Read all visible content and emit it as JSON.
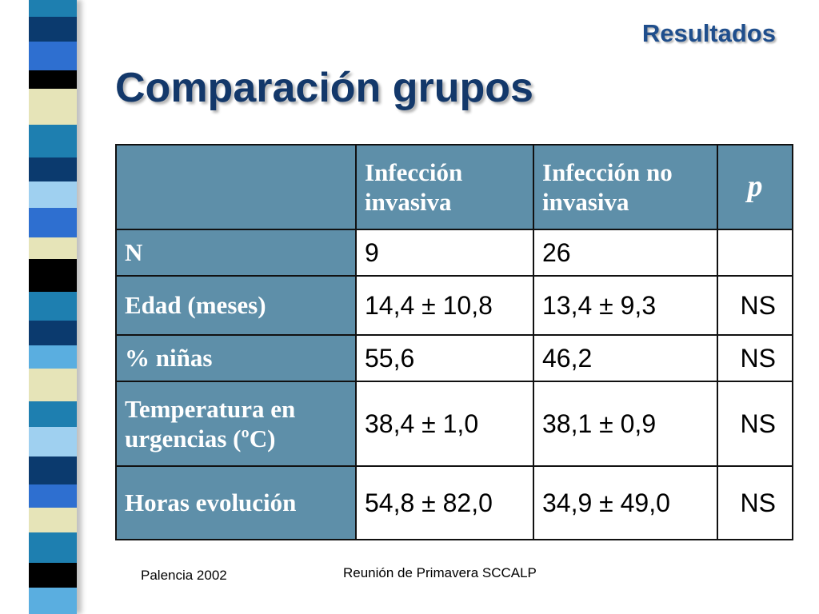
{
  "slide": {
    "section_label": "Resultados",
    "title": "Comparación grupos"
  },
  "table": {
    "headers": [
      "",
      "Infección invasiva",
      "Infección no invasiva",
      "p"
    ],
    "rows": [
      {
        "label": "N",
        "invasiva": "9",
        "no_invasiva": "26",
        "p": ""
      },
      {
        "label": "Edad (meses)",
        "invasiva": "14,4 ± 10,8",
        "no_invasiva": "13,4 ± 9,3",
        "p": "NS"
      },
      {
        "label": "% niñas",
        "invasiva": "55,6",
        "no_invasiva": "46,2",
        "p": "NS"
      },
      {
        "label": "Temperatura en urgencias (ºC)",
        "invasiva": "38,4 ± 1,0",
        "no_invasiva": "38,1 ± 0,9",
        "p": "NS"
      },
      {
        "label": "Horas evolución",
        "invasiva": "54,8 ± 82,0",
        "no_invasiva": "34,9 ± 49,0",
        "p": "NS"
      }
    ]
  },
  "footer": {
    "left": "Palencia 2002",
    "center": "Reunión de Primavera SCCALP"
  },
  "colors": {
    "title": "#13386a",
    "section_label": "#1f4e8c",
    "table_header_bg": "#5e8fa9",
    "strip": [
      "#1e7fb0",
      "#0b3a6e",
      "#5aaee0",
      "#e6e4b8",
      "#000000",
      "#9fd0f0",
      "#2e86c1"
    ]
  }
}
